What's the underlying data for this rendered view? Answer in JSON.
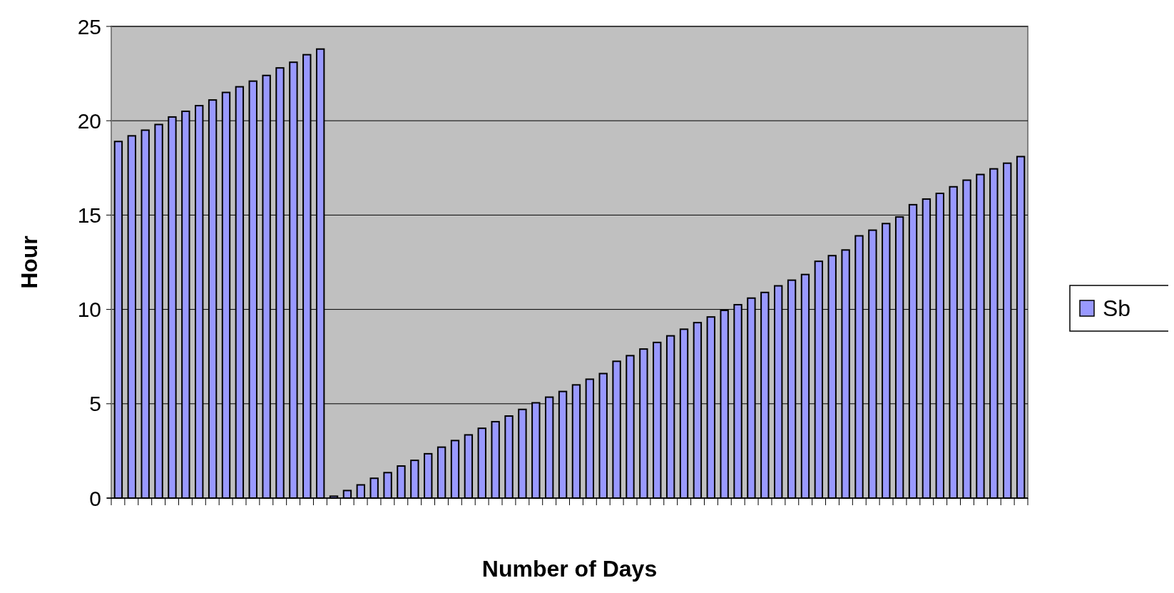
{
  "chart_data": {
    "type": "bar",
    "xlabel": "Number of Days",
    "ylabel": "Hour",
    "categories": [
      null,
      null,
      null,
      null,
      null,
      null,
      null,
      null,
      null,
      null,
      null,
      null,
      null,
      null,
      null,
      null,
      null,
      null,
      null,
      null,
      null,
      null,
      null,
      null,
      null,
      null,
      null,
      null,
      null,
      null,
      null,
      null,
      null,
      null,
      null,
      null,
      null,
      null,
      null,
      null,
      null,
      null,
      null,
      null,
      null,
      null,
      null,
      null,
      null,
      null,
      null,
      null,
      null,
      null,
      null,
      null,
      null,
      null,
      null,
      null,
      null,
      null,
      null,
      null,
      null,
      null,
      null,
      null
    ],
    "series": [
      {
        "name": "Sb",
        "color": "#9999ff",
        "values": [
          18.9,
          19.2,
          19.5,
          19.8,
          20.2,
          20.5,
          20.8,
          21.1,
          21.5,
          21.8,
          22.1,
          22.4,
          22.8,
          23.1,
          23.5,
          23.8,
          0.1,
          0.4,
          0.7,
          1.05,
          1.35,
          1.7,
          2.0,
          2.35,
          2.7,
          3.05,
          3.35,
          3.7,
          4.05,
          4.35,
          4.7,
          5.05,
          5.35,
          5.65,
          6.0,
          6.3,
          6.6,
          7.25,
          7.55,
          7.9,
          8.25,
          8.6,
          8.95,
          9.3,
          9.6,
          9.95,
          10.25,
          10.6,
          10.9,
          11.25,
          11.55,
          11.85,
          12.55,
          12.85,
          13.15,
          13.9,
          14.2,
          14.55,
          14.9,
          15.55,
          15.85,
          16.15,
          16.5,
          16.85,
          17.15,
          17.45,
          17.75,
          18.1
        ]
      }
    ],
    "ylim": [
      0,
      25
    ],
    "yticks": [
      0,
      5,
      10,
      15,
      20,
      25
    ],
    "grid": "y",
    "legend": "right"
  }
}
